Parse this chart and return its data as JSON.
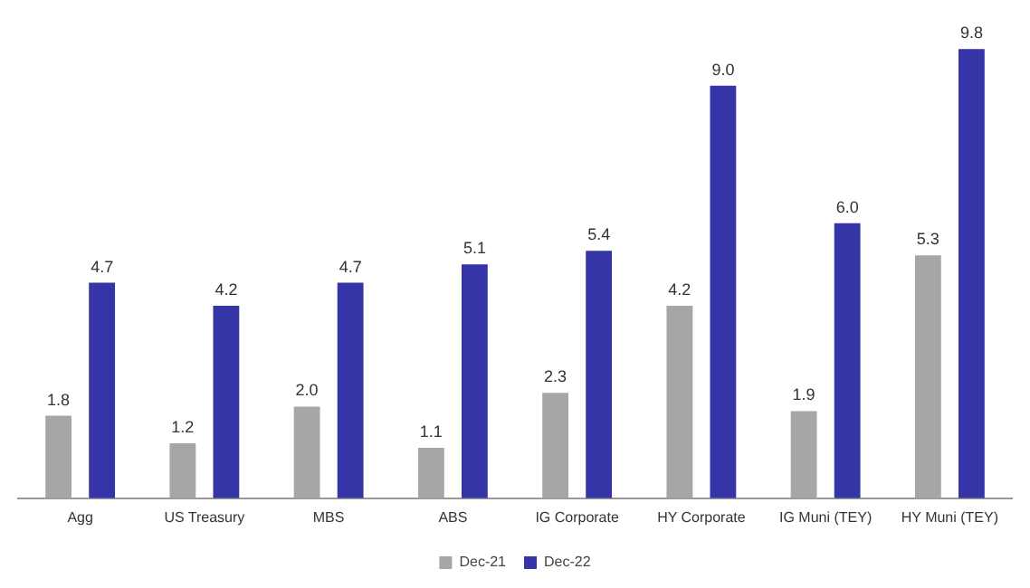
{
  "chart_data": {
    "type": "bar",
    "categories": [
      "Agg",
      "US Treasury",
      "MBS",
      "ABS",
      "IG Corporate",
      "HY Corporate",
      "IG Muni (TEY)",
      "HY Muni (TEY)"
    ],
    "series": [
      {
        "name": "Dec-21",
        "color": "#a6a6a6",
        "values": [
          1.8,
          1.2,
          2.0,
          1.1,
          2.3,
          4.2,
          1.9,
          5.3
        ],
        "value_labels": [
          "1.8",
          "1.2",
          "2.0",
          "1.1",
          "2.3",
          "4.2",
          "1.9",
          "5.3"
        ]
      },
      {
        "name": "Dec-22",
        "color": "#3535a8",
        "values": [
          4.7,
          4.2,
          4.7,
          5.1,
          5.4,
          9.0,
          6.0,
          9.8
        ],
        "value_labels": [
          "4.7",
          "4.2",
          "4.7",
          "5.1",
          "5.4",
          "9.0",
          "6.0",
          "9.8"
        ]
      }
    ],
    "legend": "bottom",
    "tick_labels": "x"
  }
}
